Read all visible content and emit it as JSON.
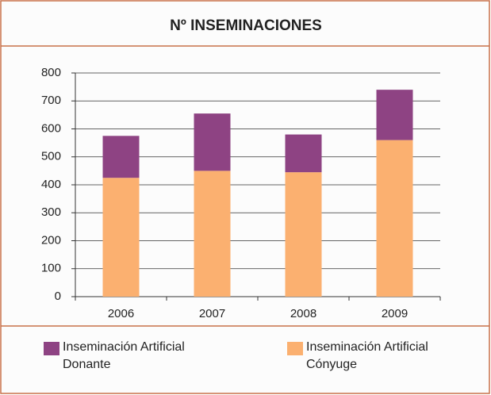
{
  "chart_data": {
    "type": "stacked_bar",
    "title": "Nº INSEMINACIONES",
    "categories": [
      "2006",
      "2007",
      "2008",
      "2009"
    ],
    "series": [
      {
        "name": "Inseminación Artificial Cónyuge",
        "color": "#fbb070",
        "values": [
          425,
          450,
          445,
          560
        ]
      },
      {
        "name": "Inseminación Artificial Donante",
        "color": "#8e4383",
        "values": [
          150,
          205,
          135,
          180
        ]
      }
    ],
    "ylim": [
      0,
      800
    ],
    "yticks": [
      0,
      100,
      200,
      300,
      400,
      500,
      600,
      700,
      800
    ],
    "grid": true
  }
}
